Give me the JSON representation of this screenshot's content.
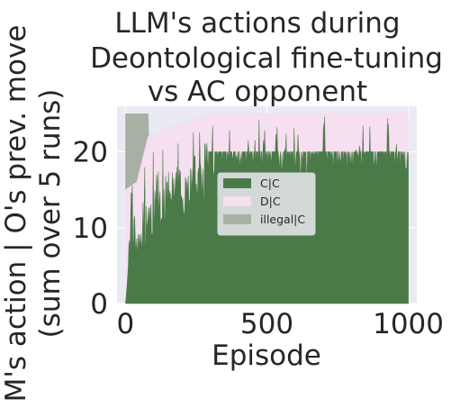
{
  "chart_data": {
    "type": "area",
    "stacked": true,
    "title": [
      "LLM's actions during",
      "Deontological fine-tuning",
      "vs AC opponent"
    ],
    "xlabel": "Episode",
    "ylabel": [
      "M's action | O's prev. move",
      "(sum over 5 runs)"
    ],
    "xlim": [
      -30,
      1030
    ],
    "ylim": [
      0,
      26
    ],
    "xticks": [
      0,
      500,
      1000
    ],
    "yticks": [
      0,
      10,
      20
    ],
    "grid": true,
    "legend_position": "center-right",
    "background_color": "#eaeaf2",
    "series": [
      {
        "name": "C|C",
        "color": "#4a7a47",
        "anchors": [
          [
            0,
            0
          ],
          [
            5,
            2
          ],
          [
            10,
            5
          ],
          [
            20,
            10
          ],
          [
            30,
            9
          ],
          [
            50,
            8
          ],
          [
            70,
            11
          ],
          [
            100,
            12
          ],
          [
            150,
            14
          ],
          [
            200,
            15
          ],
          [
            250,
            16
          ],
          [
            280,
            17
          ],
          [
            295,
            20
          ],
          [
            330,
            20
          ],
          [
            500,
            20
          ],
          [
            700,
            20
          ],
          [
            900,
            20
          ],
          [
            1000,
            20
          ]
        ],
        "noise": 3.5
      },
      {
        "name": "D|C",
        "color": "#f6dff0",
        "anchors": [
          [
            0,
            15
          ],
          [
            40,
            16
          ],
          [
            80,
            22
          ],
          [
            300,
            25
          ],
          [
            1000,
            25
          ]
        ]
      },
      {
        "name": "illegal|C",
        "color": "#a7b1a3",
        "anchors": [
          [
            0,
            25
          ],
          [
            1000,
            25
          ]
        ],
        "active_until": 80
      }
    ]
  }
}
